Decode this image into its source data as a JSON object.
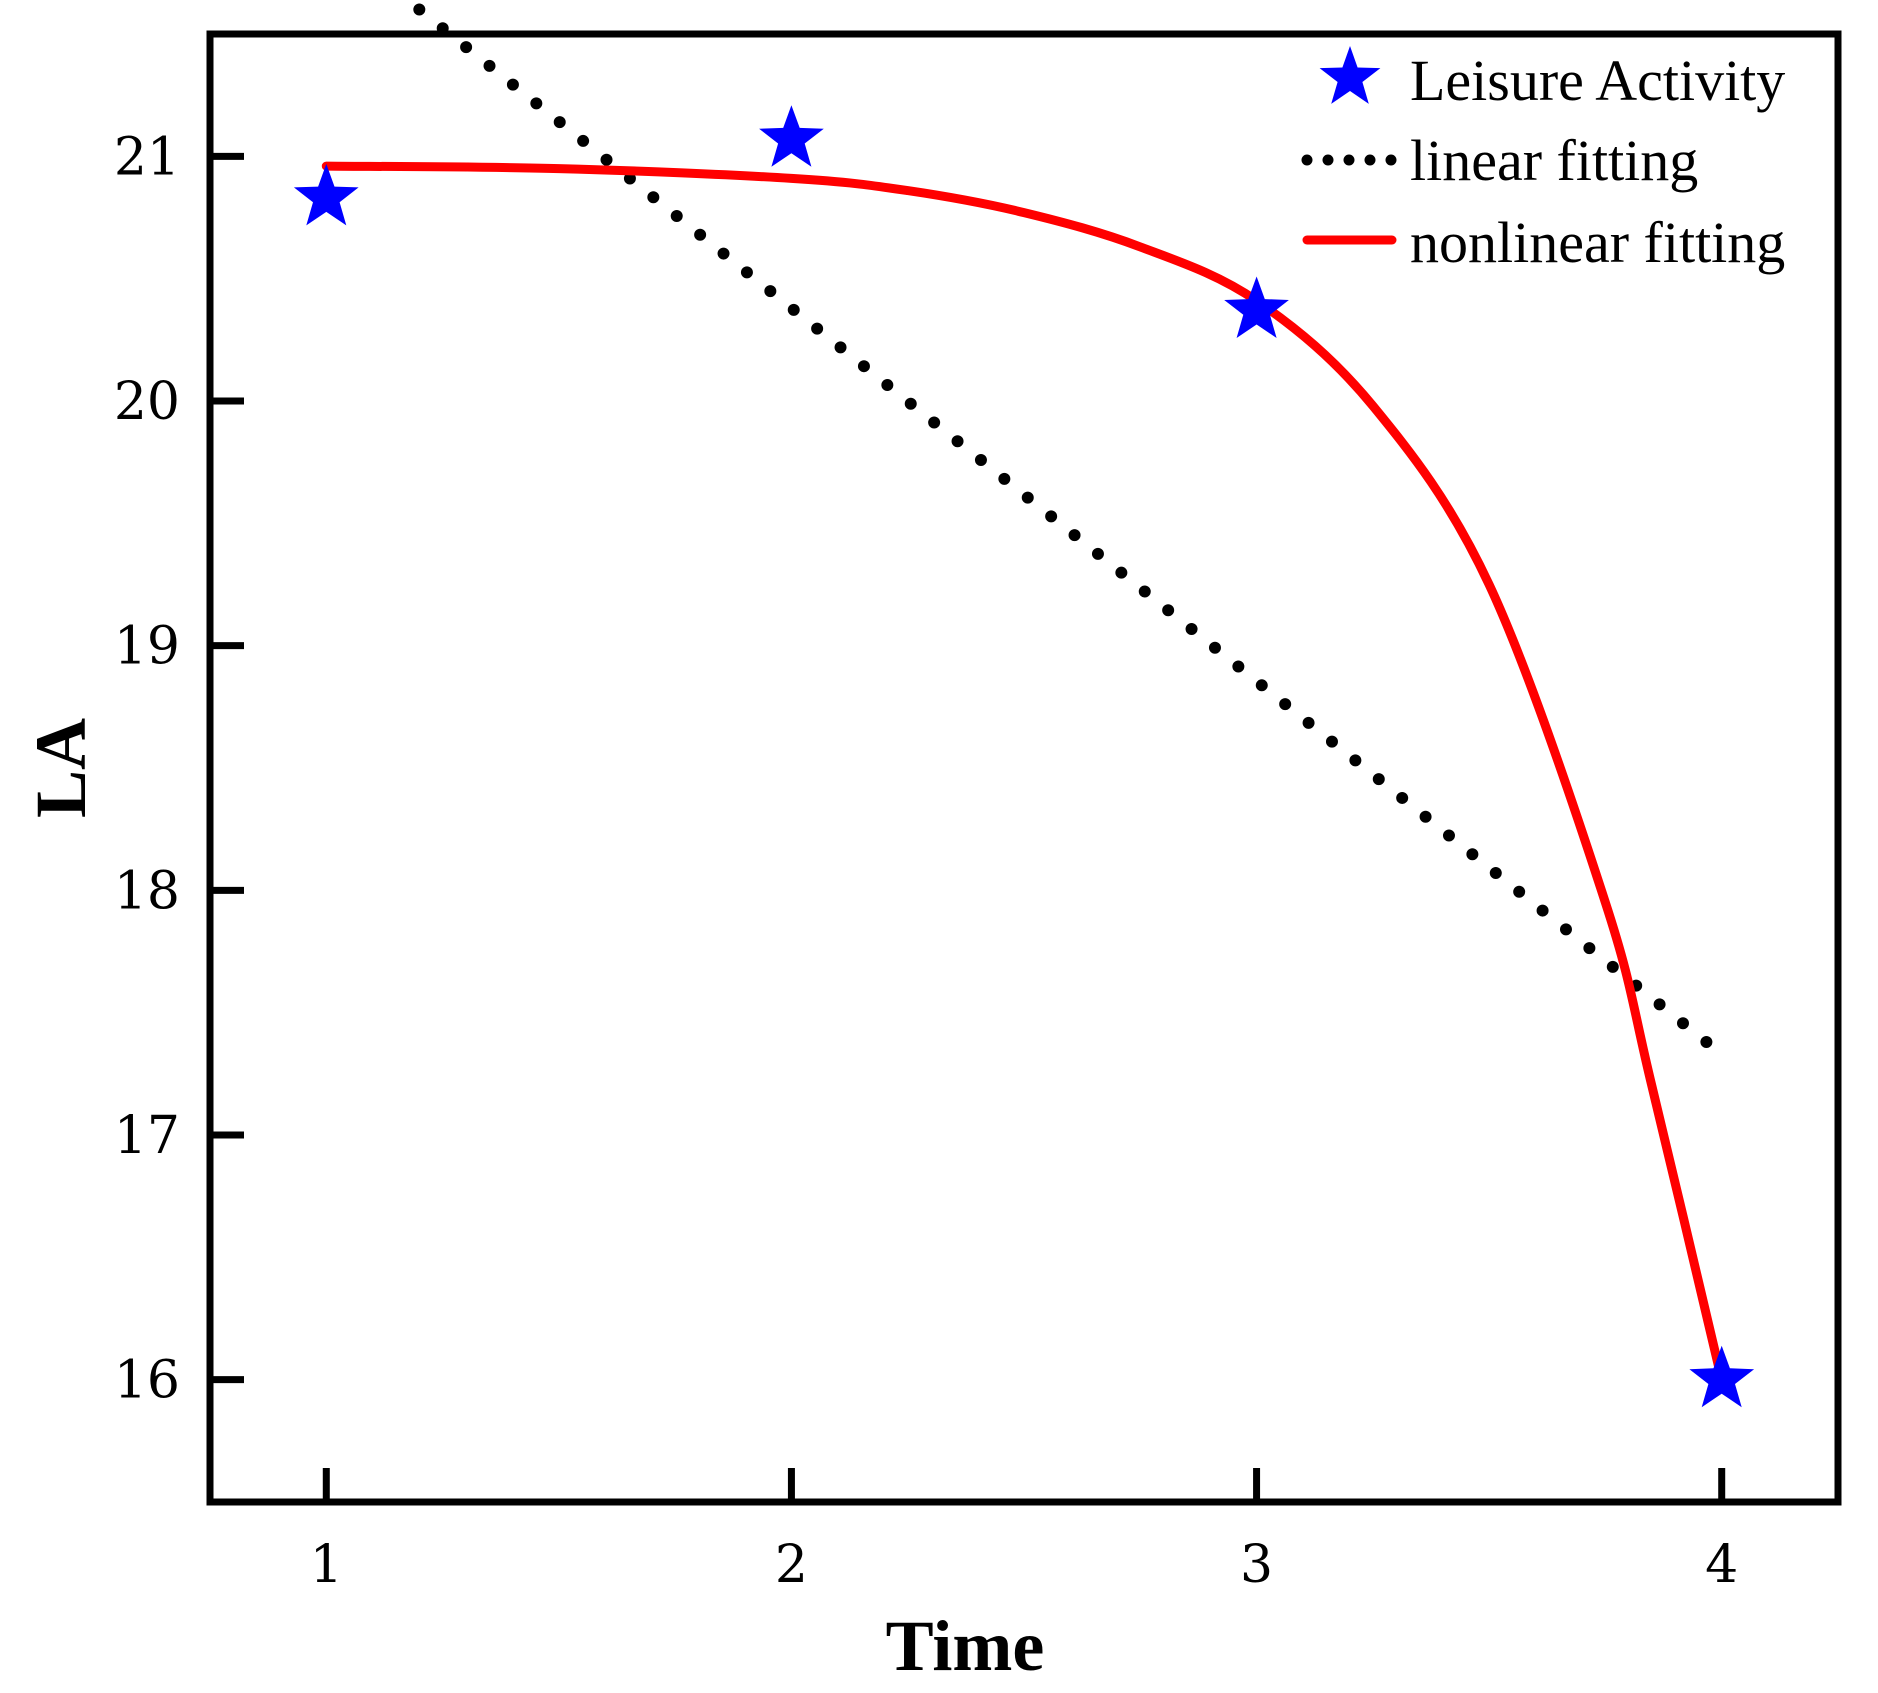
{
  "chart_data": {
    "type": "scatter",
    "title": "",
    "xlabel": "Time",
    "ylabel": "LA",
    "xlim": [
      0.75,
      4.25
    ],
    "ylim": [
      15.5,
      21.5
    ],
    "x_ticks": [
      "1",
      "2",
      "3",
      "4"
    ],
    "y_ticks": [
      "16",
      "17",
      "18",
      "19",
      "20",
      "21"
    ],
    "grid": false,
    "legend_position": "top-right",
    "series": [
      {
        "name": "Leisure Activity",
        "kind": "scatter",
        "marker": "star",
        "color": "#0000ff",
        "x": [
          1,
          2,
          3,
          4
        ],
        "y": [
          20.83,
          21.07,
          20.37,
          16.0
        ]
      },
      {
        "name": "linear fitting",
        "kind": "line",
        "style": "dotted",
        "color": "#000000",
        "x": [
          1.2,
          4.0
        ],
        "y": [
          21.6,
          17.33
        ]
      },
      {
        "name": "nonlinear fitting",
        "kind": "line",
        "style": "solid",
        "color": "#ff0000",
        "x": [
          1.0,
          1.5,
          2.0,
          2.25,
          2.5,
          2.75,
          3.0,
          3.25,
          3.5,
          3.75,
          3.85,
          4.0
        ],
        "y": [
          20.96,
          20.95,
          20.91,
          20.86,
          20.77,
          20.63,
          20.41,
          19.98,
          19.25,
          17.95,
          17.2,
          16.0
        ]
      }
    ]
  }
}
